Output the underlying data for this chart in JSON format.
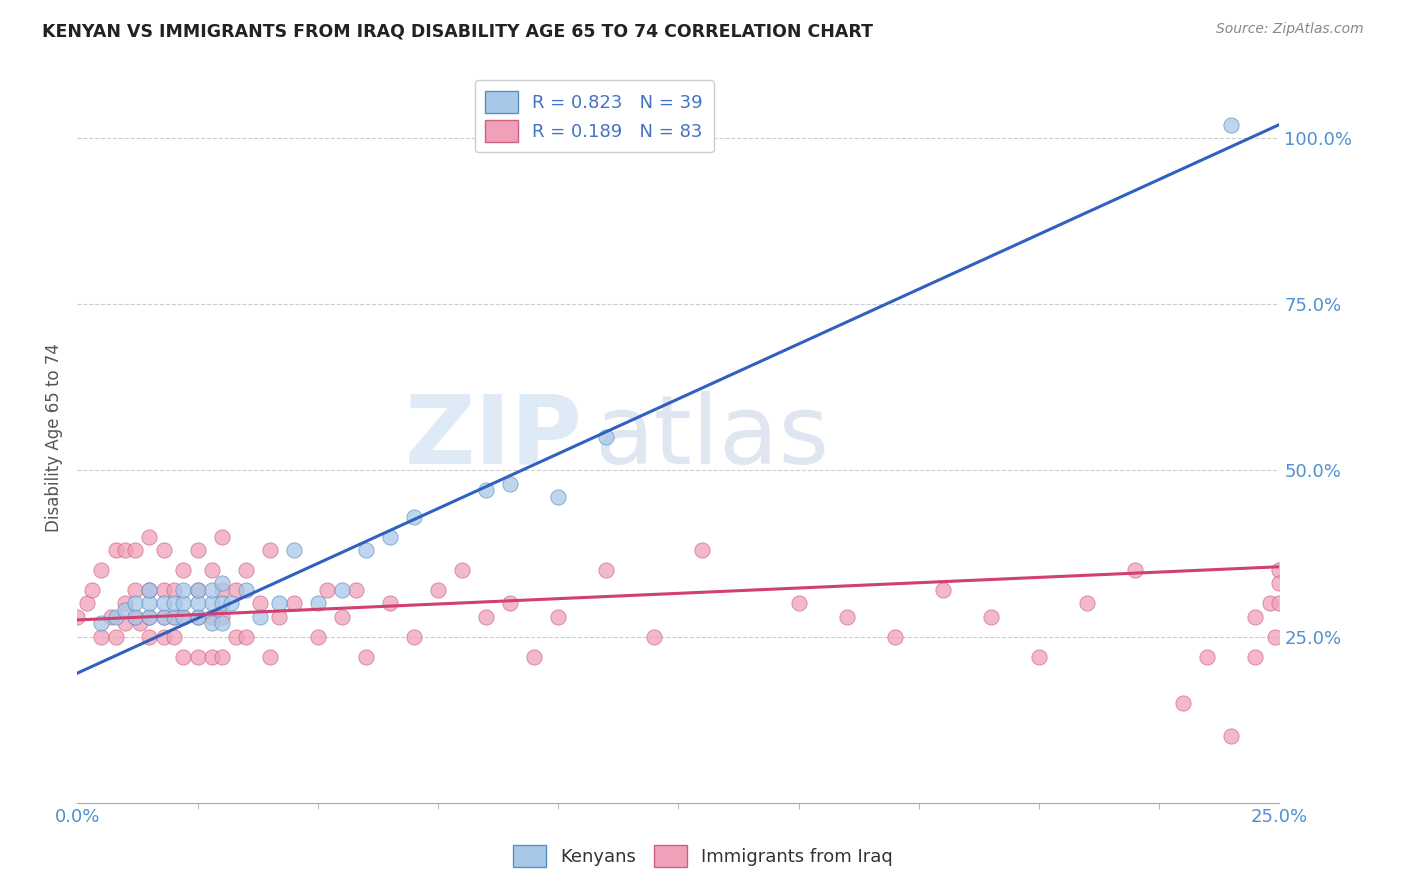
{
  "title": "KENYAN VS IMMIGRANTS FROM IRAQ DISABILITY AGE 65 TO 74 CORRELATION CHART",
  "source": "Source: ZipAtlas.com",
  "ylabel": "Disability Age 65 to 74",
  "xlim": [
    0.0,
    0.25
  ],
  "ylim": [
    0.0,
    1.1
  ],
  "x_tick_positions": [
    0.0,
    0.25
  ],
  "x_tick_labels": [
    "0.0%",
    "25.0%"
  ],
  "y_tick_positions": [
    0.25,
    0.5,
    0.75,
    1.0
  ],
  "y_tick_labels": [
    "25.0%",
    "50.0%",
    "75.0%",
    "100.0%"
  ],
  "legend_line1": "R = 0.823   N = 39",
  "legend_line2": "R = 0.189   N = 83",
  "kenyan_color": "#a8c8e8",
  "kenyan_edge": "#5590c8",
  "iraq_color": "#f0a0b8",
  "iraq_edge": "#d06080",
  "blue_line_color": "#3060c0",
  "pink_line_color": "#d04070",
  "kenyan_x": [
    0.005,
    0.008,
    0.01,
    0.012,
    0.012,
    0.015,
    0.015,
    0.015,
    0.018,
    0.018,
    0.02,
    0.02,
    0.022,
    0.022,
    0.022,
    0.025,
    0.025,
    0.025,
    0.028,
    0.028,
    0.028,
    0.03,
    0.03,
    0.03,
    0.032,
    0.035,
    0.038,
    0.042,
    0.045,
    0.05,
    0.055,
    0.06,
    0.065,
    0.07,
    0.085,
    0.09,
    0.1,
    0.11,
    0.24
  ],
  "kenyan_y": [
    0.27,
    0.28,
    0.29,
    0.28,
    0.3,
    0.28,
    0.3,
    0.32,
    0.28,
    0.3,
    0.28,
    0.3,
    0.28,
    0.3,
    0.32,
    0.28,
    0.3,
    0.32,
    0.27,
    0.3,
    0.32,
    0.27,
    0.3,
    0.33,
    0.3,
    0.32,
    0.28,
    0.3,
    0.38,
    0.3,
    0.32,
    0.38,
    0.4,
    0.43,
    0.47,
    0.48,
    0.46,
    0.55,
    1.02
  ],
  "iraq_x": [
    0.0,
    0.002,
    0.003,
    0.005,
    0.005,
    0.007,
    0.008,
    0.008,
    0.01,
    0.01,
    0.01,
    0.012,
    0.012,
    0.012,
    0.013,
    0.015,
    0.015,
    0.015,
    0.015,
    0.018,
    0.018,
    0.018,
    0.018,
    0.02,
    0.02,
    0.02,
    0.022,
    0.022,
    0.022,
    0.025,
    0.025,
    0.025,
    0.025,
    0.028,
    0.028,
    0.028,
    0.03,
    0.03,
    0.03,
    0.03,
    0.033,
    0.033,
    0.035,
    0.035,
    0.038,
    0.04,
    0.04,
    0.042,
    0.045,
    0.05,
    0.052,
    0.055,
    0.058,
    0.06,
    0.065,
    0.07,
    0.075,
    0.08,
    0.085,
    0.09,
    0.095,
    0.1,
    0.11,
    0.12,
    0.13,
    0.15,
    0.16,
    0.17,
    0.18,
    0.19,
    0.2,
    0.21,
    0.22,
    0.23,
    0.235,
    0.24,
    0.245,
    0.245,
    0.248,
    0.249,
    0.25,
    0.25,
    0.25
  ],
  "iraq_y": [
    0.28,
    0.3,
    0.32,
    0.25,
    0.35,
    0.28,
    0.25,
    0.38,
    0.27,
    0.3,
    0.38,
    0.28,
    0.32,
    0.38,
    0.27,
    0.25,
    0.28,
    0.32,
    0.4,
    0.25,
    0.28,
    0.32,
    0.38,
    0.25,
    0.28,
    0.32,
    0.22,
    0.28,
    0.35,
    0.22,
    0.28,
    0.32,
    0.38,
    0.22,
    0.28,
    0.35,
    0.22,
    0.28,
    0.32,
    0.4,
    0.25,
    0.32,
    0.25,
    0.35,
    0.3,
    0.22,
    0.38,
    0.28,
    0.3,
    0.25,
    0.32,
    0.28,
    0.32,
    0.22,
    0.3,
    0.25,
    0.32,
    0.35,
    0.28,
    0.3,
    0.22,
    0.28,
    0.35,
    0.25,
    0.38,
    0.3,
    0.28,
    0.25,
    0.32,
    0.28,
    0.22,
    0.3,
    0.35,
    0.15,
    0.22,
    0.1,
    0.22,
    0.28,
    0.3,
    0.25,
    0.35,
    0.3,
    0.33
  ],
  "blue_trend_x": [
    0.0,
    0.25
  ],
  "blue_trend_y": [
    0.195,
    1.02
  ],
  "pink_trend_x": [
    0.0,
    0.25
  ],
  "pink_trend_y": [
    0.275,
    0.355
  ],
  "watermark_zip": "ZIP",
  "watermark_atlas": "atlas",
  "background": "#ffffff",
  "grid_color": "#c8c8c8"
}
